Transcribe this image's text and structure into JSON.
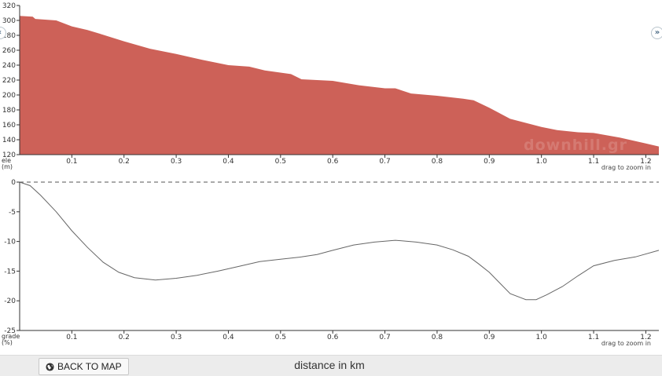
{
  "footer": {
    "back_label": "BACK TO MAP",
    "xaxis_title": "distance in km"
  },
  "nav": {
    "left": "‹",
    "right": "»"
  },
  "watermark": "downhill.gr",
  "colors": {
    "elevation_fill": "#cd6158",
    "grade_line": "#666666",
    "zero_line": "#555555"
  },
  "chart_data": [
    {
      "type": "area",
      "ylabel": "ele (m)",
      "hint": "drag to zoom in",
      "xlim": [
        0,
        1.225
      ],
      "ylim": [
        120,
        320
      ],
      "xticks": [
        0.1,
        0.2,
        0.3,
        0.4,
        0.5,
        0.6,
        0.7,
        0.8,
        0.9,
        1.0,
        1.1,
        1.2
      ],
      "xtick_labels": [
        "0.1",
        "0.2",
        "0.3",
        "0.4",
        "0.5",
        "0.6",
        "0.7",
        "0.8",
        "0.9",
        "1.0",
        "1.1",
        "1.2"
      ],
      "yticks": [
        120,
        140,
        160,
        180,
        200,
        220,
        240,
        260,
        280,
        300,
        320
      ],
      "ytick_labels": [
        "120",
        "140",
        "160",
        "180",
        "200",
        "220",
        "240",
        "260",
        "280",
        "300",
        "320"
      ],
      "x": [
        0,
        0.025,
        0.03,
        0.07,
        0.1,
        0.13,
        0.15,
        0.2,
        0.25,
        0.3,
        0.35,
        0.4,
        0.44,
        0.47,
        0.52,
        0.54,
        0.6,
        0.65,
        0.7,
        0.72,
        0.75,
        0.8,
        0.85,
        0.87,
        0.9,
        0.94,
        1.0,
        1.03,
        1.07,
        1.1,
        1.15,
        1.2,
        1.225
      ],
      "y": [
        306,
        305,
        302,
        300,
        292,
        287,
        283,
        272,
        262,
        255,
        247,
        240,
        238,
        233,
        228,
        221,
        219,
        213,
        209,
        209,
        202,
        199,
        195,
        193,
        183,
        168,
        157,
        153,
        150,
        149,
        143,
        135,
        131
      ]
    },
    {
      "type": "line",
      "ylabel": "grade (%)",
      "hint": "drag to zoom in",
      "xlim": [
        0,
        1.225
      ],
      "ylim": [
        -25,
        0
      ],
      "xticks": [
        0.1,
        0.2,
        0.3,
        0.4,
        0.5,
        0.6,
        0.7,
        0.8,
        0.9,
        1.0,
        1.1,
        1.2
      ],
      "xtick_labels": [
        "0.1",
        "0.2",
        "0.3",
        "0.4",
        "0.5",
        "0.6",
        "0.7",
        "0.8",
        "0.9",
        "1.0",
        "1.1",
        "1.2"
      ],
      "yticks": [
        0,
        -5,
        -10,
        -15,
        -20,
        -25
      ],
      "ytick_labels": [
        "0",
        "-5",
        "-10",
        "-15",
        "-20",
        "-25"
      ],
      "x": [
        0,
        0.02,
        0.04,
        0.07,
        0.1,
        0.13,
        0.16,
        0.19,
        0.22,
        0.26,
        0.3,
        0.34,
        0.38,
        0.42,
        0.46,
        0.5,
        0.54,
        0.57,
        0.6,
        0.64,
        0.68,
        0.72,
        0.76,
        0.8,
        0.83,
        0.86,
        0.88,
        0.9,
        0.92,
        0.94,
        0.97,
        0.99,
        1.01,
        1.04,
        1.07,
        1.1,
        1.14,
        1.18,
        1.225
      ],
      "y": [
        0,
        -0.6,
        -2.2,
        -5.0,
        -8.2,
        -11.0,
        -13.5,
        -15.2,
        -16.1,
        -16.5,
        -16.2,
        -15.7,
        -15.0,
        -14.2,
        -13.4,
        -13.0,
        -12.6,
        -12.2,
        -11.5,
        -10.6,
        -10.1,
        -9.8,
        -10.1,
        -10.6,
        -11.4,
        -12.5,
        -13.8,
        -15.2,
        -17.0,
        -18.8,
        -19.8,
        -19.8,
        -19.0,
        -17.6,
        -15.8,
        -14.1,
        -13.2,
        -12.6,
        -11.5
      ]
    }
  ]
}
